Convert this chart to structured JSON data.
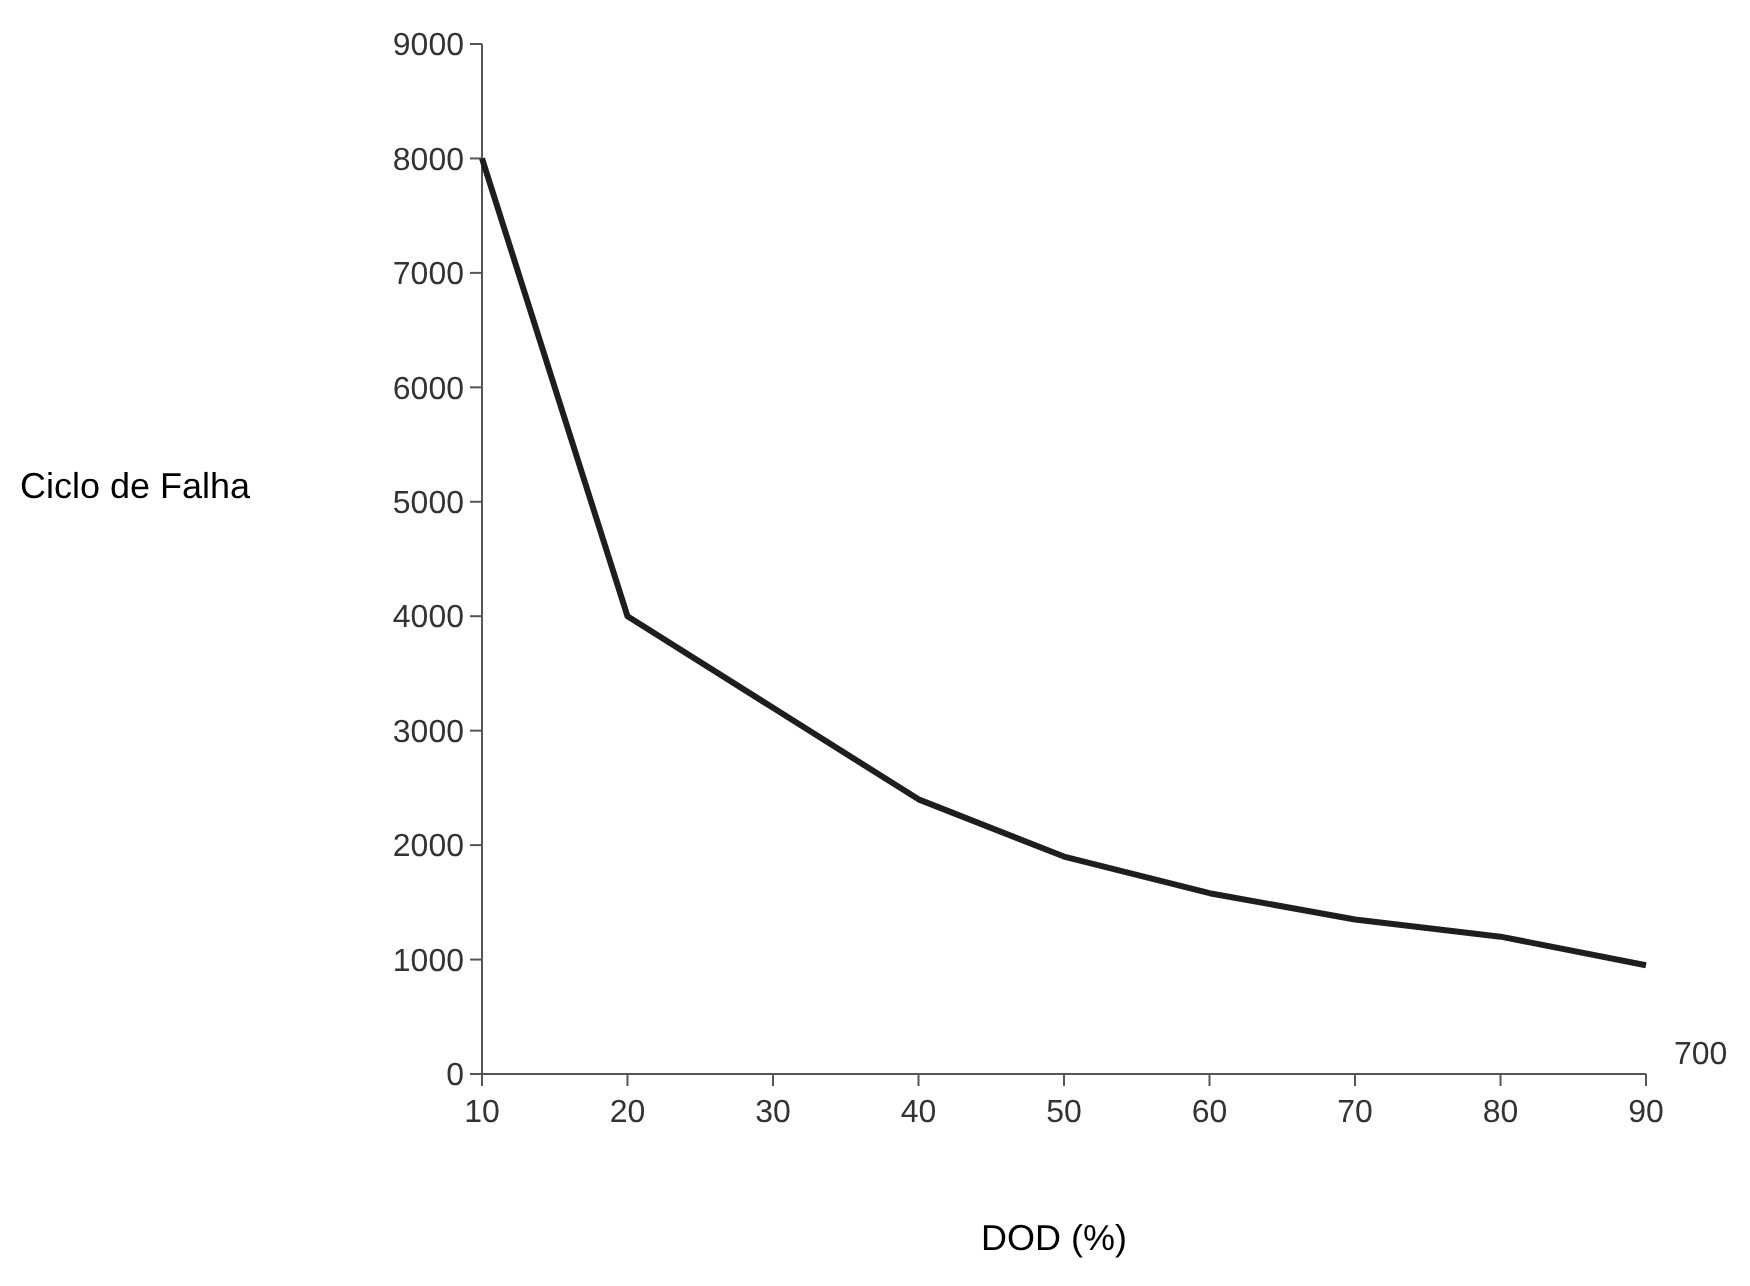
{
  "chart_data": {
    "type": "line",
    "xlabel": "DOD (%)",
    "ylabel": "Ciclo de Falha",
    "x": [
      10,
      20,
      30,
      40,
      50,
      60,
      70,
      80,
      90
    ],
    "series": [
      {
        "color": "#1e1e1e",
        "values": [
          8000,
          4000,
          3200,
          2400,
          1900,
          1580,
          1350,
          1200,
          950
        ]
      }
    ],
    "xlim": [
      10,
      90
    ],
    "xticks": [
      10,
      20,
      30,
      40,
      50,
      60,
      70,
      80,
      90
    ],
    "ylim": [
      0,
      9000
    ],
    "yticks": [
      0,
      1000,
      2000,
      3000,
      4000,
      5000,
      6000,
      7000,
      8000,
      9000
    ],
    "annotations": [
      "700"
    ],
    "grid": false,
    "marker": "none",
    "line_style": "solid"
  }
}
